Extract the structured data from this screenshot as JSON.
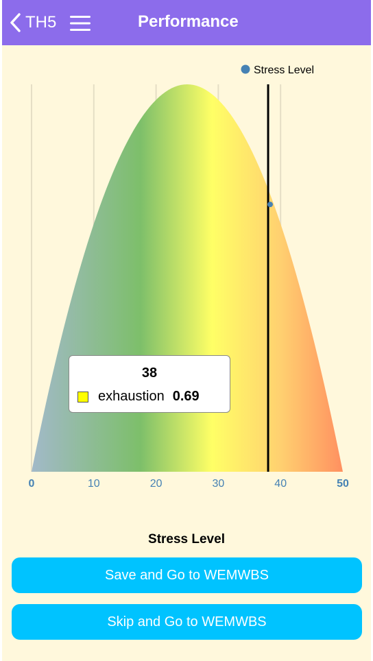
{
  "header": {
    "back_label": "TH5",
    "title": "Performance"
  },
  "chart_data": {
    "type": "area",
    "legend": {
      "label": "Stress Level",
      "color": "#4682b4",
      "position": "top-right"
    },
    "x_ticks": [
      "0",
      "10",
      "20",
      "30",
      "40",
      "50"
    ],
    "xlim": [
      0,
      50
    ],
    "ylim": [
      0,
      1
    ],
    "xlabel": "Stress Level",
    "grid": true,
    "curve": {
      "shape": "parabola",
      "x": [
        0,
        5,
        10,
        15,
        20,
        25,
        30,
        35,
        38,
        40,
        45,
        50
      ],
      "y": [
        0,
        0.36,
        0.64,
        0.84,
        0.96,
        1.0,
        0.96,
        0.84,
        0.69,
        0.64,
        0.36,
        0
      ]
    },
    "marker": {
      "x": 38,
      "y": 0.69,
      "color": "#4682b4"
    },
    "vertical_line_x": 38,
    "tooltip": {
      "x": "38",
      "series": "exhaustion",
      "value": "0.69",
      "swatch_color": "#ffff00"
    }
  },
  "buttons": {
    "save_label": "Save and Go to WEMWBS",
    "skip_label": "Skip and Go to WEMWBS"
  }
}
